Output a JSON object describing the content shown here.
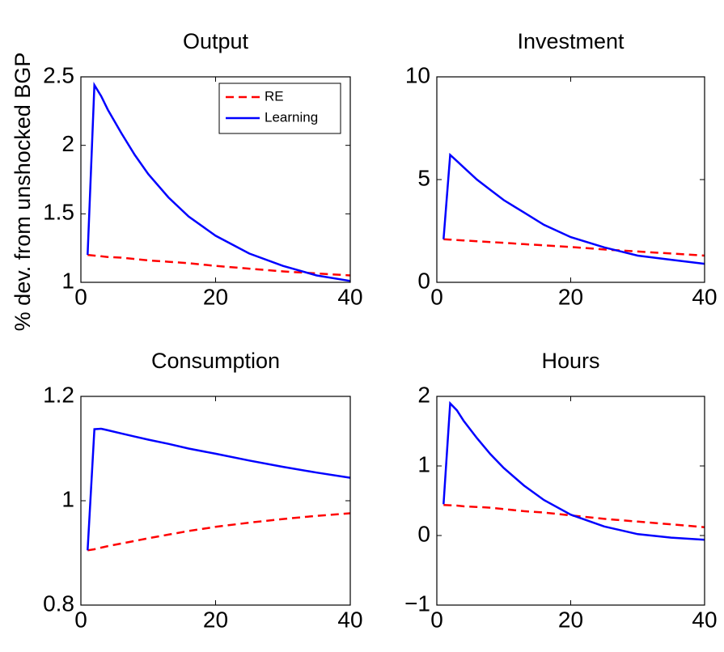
{
  "chart_data": [
    {
      "type": "line",
      "title": "Output",
      "ylabel": "% dev. from unshocked BGP",
      "legend": "upper right",
      "x": [
        1,
        2,
        3,
        4,
        6,
        8,
        10,
        13,
        16,
        20,
        25,
        30,
        35,
        40
      ],
      "series": [
        {
          "name": "RE",
          "color": "#ff0000",
          "linestyle": "dashed",
          "values": [
            1.2,
            1.195,
            1.19,
            1.185,
            1.18,
            1.17,
            1.16,
            1.15,
            1.14,
            1.12,
            1.1,
            1.08,
            1.065,
            1.05
          ]
        },
        {
          "name": "Learning",
          "color": "#0000ff",
          "linestyle": "solid",
          "values": [
            1.2,
            2.44,
            2.36,
            2.26,
            2.09,
            1.93,
            1.79,
            1.62,
            1.48,
            1.34,
            1.21,
            1.12,
            1.05,
            1.01
          ]
        }
      ],
      "xlim": [
        0,
        40
      ],
      "xticks": [
        0,
        20,
        40
      ],
      "ylim": [
        1,
        2.5
      ],
      "yticks": [
        1,
        1.5,
        2,
        2.5
      ]
    },
    {
      "type": "line",
      "title": "Investment",
      "x": [
        1,
        2,
        3,
        4,
        6,
        8,
        10,
        13,
        16,
        20,
        25,
        30,
        35,
        40
      ],
      "series": [
        {
          "name": "RE",
          "color": "#ff0000",
          "linestyle": "dashed",
          "values": [
            2.1,
            2.08,
            2.06,
            2.04,
            2.0,
            1.96,
            1.92,
            1.86,
            1.8,
            1.72,
            1.6,
            1.5,
            1.4,
            1.3
          ]
        },
        {
          "name": "Learning",
          "color": "#0000ff",
          "linestyle": "solid",
          "values": [
            2.1,
            6.2,
            5.9,
            5.6,
            5.0,
            4.5,
            4.0,
            3.4,
            2.8,
            2.2,
            1.7,
            1.3,
            1.1,
            0.9
          ]
        }
      ],
      "xlim": [
        0,
        40
      ],
      "xticks": [
        0,
        20,
        40
      ],
      "ylim": [
        0,
        10
      ],
      "yticks": [
        0,
        5,
        10
      ]
    },
    {
      "type": "line",
      "title": "Consumption",
      "x": [
        1,
        2,
        3,
        4,
        6,
        8,
        10,
        13,
        16,
        20,
        25,
        30,
        35,
        40
      ],
      "series": [
        {
          "name": "RE",
          "color": "#ff0000",
          "linestyle": "dashed",
          "values": [
            0.905,
            0.907,
            0.91,
            0.913,
            0.918,
            0.923,
            0.928,
            0.935,
            0.942,
            0.95,
            0.958,
            0.965,
            0.971,
            0.976
          ]
        },
        {
          "name": "Learning",
          "color": "#0000ff",
          "linestyle": "solid",
          "values": [
            0.905,
            1.137,
            1.138,
            1.135,
            1.129,
            1.123,
            1.117,
            1.109,
            1.1,
            1.09,
            1.077,
            1.065,
            1.054,
            1.044
          ]
        }
      ],
      "xlim": [
        0,
        40
      ],
      "xticks": [
        0,
        20,
        40
      ],
      "ylim": [
        0.8,
        1.2
      ],
      "yticks": [
        0.8,
        1,
        1.2
      ]
    },
    {
      "type": "line",
      "title": "Hours",
      "x": [
        1,
        2,
        3,
        4,
        6,
        8,
        10,
        13,
        16,
        20,
        25,
        30,
        35,
        40
      ],
      "series": [
        {
          "name": "RE",
          "color": "#ff0000",
          "linestyle": "dashed",
          "values": [
            0.44,
            0.435,
            0.43,
            0.42,
            0.41,
            0.4,
            0.38,
            0.35,
            0.33,
            0.29,
            0.24,
            0.2,
            0.16,
            0.12
          ]
        },
        {
          "name": "Learning",
          "color": "#0000ff",
          "linestyle": "solid",
          "values": [
            0.45,
            1.9,
            1.8,
            1.65,
            1.4,
            1.17,
            0.97,
            0.72,
            0.51,
            0.3,
            0.13,
            0.02,
            -0.03,
            -0.06
          ]
        }
      ],
      "xlim": [
        0,
        40
      ],
      "xticks": [
        0,
        20,
        40
      ],
      "ylim": [
        -1,
        2
      ],
      "yticks": [
        {
          "value": -1,
          "label": "−1"
        },
        0,
        1,
        2
      ]
    }
  ]
}
